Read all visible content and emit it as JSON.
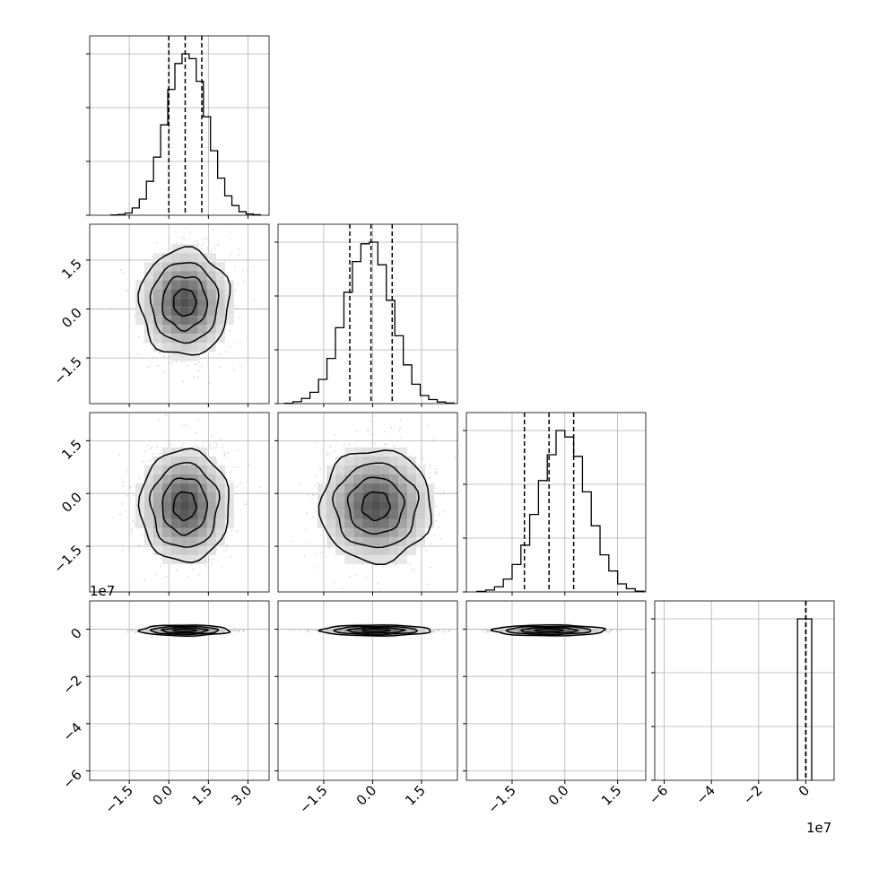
{
  "chart_data": {
    "type": "corner",
    "grid": true,
    "variables": 4,
    "quantile_lines": "dashed",
    "axes": [
      {
        "ticks": [
          -1.5,
          0.0,
          1.5,
          3.0
        ],
        "tick_labels": [
          "−1.5",
          "0.0",
          "1.5",
          "3.0"
        ],
        "range": [
          -3.0,
          3.8
        ],
        "offset_text": ""
      },
      {
        "ticks": [
          -1.5,
          0.0,
          1.5
        ],
        "tick_labels": [
          "−1.5",
          "0.0",
          "1.5"
        ],
        "range": [
          -2.9,
          2.6
        ],
        "offset_text": ""
      },
      {
        "ticks": [
          -1.5,
          0.0,
          1.5
        ],
        "tick_labels": [
          "−1.5",
          "0.0",
          "1.5"
        ],
        "range": [
          -2.8,
          2.3
        ],
        "offset_text": "1e7"
      },
      {
        "ticks": [
          -6,
          -4,
          -2,
          0
        ],
        "tick_labels": [
          "−6",
          "−4",
          "−2",
          "0"
        ],
        "range": [
          -6.4,
          1.2
        ],
        "offset_text": "1e7"
      }
    ],
    "diagonal": [
      {
        "bin_edges_start": -2.2,
        "bin_width": 0.27,
        "quantiles": [
          0.0,
          0.62,
          1.25
        ],
        "counts": [
          2,
          5,
          14,
          45,
          100,
          210,
          360,
          560,
          780,
          940,
          1000,
          970,
          830,
          610,
          400,
          230,
          120,
          60,
          22,
          8,
          3
        ]
      },
      {
        "bin_edges_start": -2.7,
        "bin_width": 0.26,
        "quantiles": [
          -0.7,
          -0.05,
          0.6
        ],
        "counts": [
          2,
          12,
          32,
          70,
          150,
          280,
          470,
          690,
          880,
          990,
          1000,
          860,
          640,
          420,
          240,
          120,
          50,
          25,
          10,
          3
        ]
      },
      {
        "bin_edges_start": -2.5,
        "bin_width": 0.25,
        "quantiles": [
          -1.15,
          -0.45,
          0.25
        ],
        "counts": [
          3,
          12,
          32,
          80,
          170,
          290,
          480,
          690,
          850,
          1000,
          960,
          840,
          620,
          410,
          230,
          130,
          50,
          20,
          5
        ]
      },
      {
        "bin_edges_start": -0.35,
        "bin_width": 0.3,
        "quantiles": [
          0.0,
          0.0,
          0.0
        ],
        "counts": [
          1000,
          1000
        ]
      }
    ],
    "pairs": [
      {
        "xi": 0,
        "yi": 1,
        "mean": [
          0.6,
          0.2
        ],
        "sd": [
          0.85,
          0.82
        ]
      },
      {
        "xi": 0,
        "yi": 2,
        "mean": [
          0.6,
          -0.35
        ],
        "sd": [
          0.85,
          0.8
        ]
      },
      {
        "xi": 1,
        "yi": 2,
        "mean": [
          0.1,
          -0.35
        ],
        "sd": [
          0.85,
          0.8
        ]
      },
      {
        "xi": 0,
        "yi": 3,
        "mean": [
          0.6,
          -0.05
        ],
        "sd": [
          0.85,
          0.04
        ]
      },
      {
        "xi": 1,
        "yi": 3,
        "mean": [
          0.1,
          -0.05
        ],
        "sd": [
          0.85,
          0.04
        ]
      },
      {
        "xi": 2,
        "yi": 3,
        "mean": [
          -0.45,
          -0.05
        ],
        "sd": [
          0.8,
          0.04
        ]
      }
    ]
  }
}
